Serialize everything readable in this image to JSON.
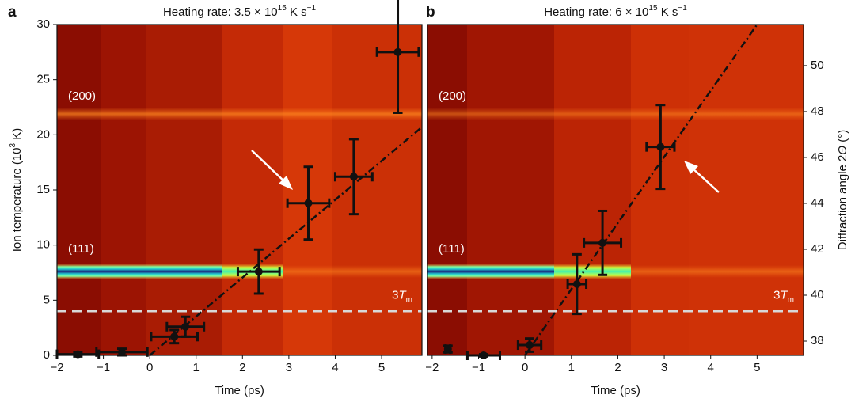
{
  "chart_data": [
    {
      "type": "scatter",
      "panel": "a",
      "title": "Heating rate: 3.5 × 10",
      "title_sup": "15",
      "title_tail": " K s",
      "title_tail_sup": "−1",
      "x_label": "Time (ps)",
      "y_label": "Ion temperature (10",
      "y_label_sup": "3",
      "y_label_tail": " K)",
      "xlim": [
        -2,
        5.87
      ],
      "ylim": [
        0,
        30
      ],
      "xticks": [
        {
          "value": -2,
          "label": "−2"
        },
        {
          "value": -1,
          "label": "−1"
        },
        0,
        1,
        2,
        3,
        4,
        5
      ],
      "yticks": [
        0,
        5,
        10,
        15,
        20,
        25,
        30
      ],
      "peak_labels": [
        "(200)",
        "(111)"
      ],
      "color": "#111111",
      "fit_color": "#111111",
      "points": {
        "x": [
          -1.55,
          -0.6,
          0.53,
          0.77,
          2.35,
          3.42,
          4.4,
          5.35
        ],
        "y": [
          0.1,
          0.3,
          1.7,
          2.6,
          7.6,
          13.8,
          16.2,
          27.5
        ],
        "xerr": [
          0.45,
          0.55,
          0.5,
          0.4,
          0.45,
          0.45,
          0.4,
          0.45
        ],
        "yerr": [
          0.2,
          0.3,
          0.6,
          0.9,
          2.0,
          3.3,
          3.4,
          5.5
        ]
      },
      "fit": {
        "x": [
          0,
          5.87
        ],
        "y": [
          0,
          20.7
        ]
      },
      "threshold": {
        "value": 4,
        "label": "3",
        "label_italic": "T",
        "label_sub": "m",
        "color": "#d8d8d8"
      }
    },
    {
      "type": "scatter",
      "panel": "b",
      "title": "Heating rate: 6 × 10",
      "title_sup": "15",
      "title_tail": " K s",
      "title_tail_sup": "−1",
      "x_label": "Time (ps)",
      "y2_label": "Diffraction angle 2",
      "y2_label_italic": "Θ",
      "y2_label_tail": " (°)",
      "xlim": [
        -2.1,
        6.0
      ],
      "ylim": [
        0,
        30
      ],
      "y2lim": [
        37.38,
        51.79
      ],
      "xticks": [
        {
          "value": -2,
          "label": "−2"
        },
        {
          "value": -1,
          "label": "−1"
        },
        0,
        1,
        2,
        3,
        4,
        5
      ],
      "y2ticks": [
        38,
        40,
        42,
        44,
        46,
        48,
        50
      ],
      "peak_labels": [
        "(200)",
        "(111)"
      ],
      "color": "#111111",
      "fit_color": "#111111",
      "points": {
        "x": [
          -1.66,
          -0.89,
          0.1,
          1.12,
          1.67,
          2.92
        ],
        "y": [
          0.57,
          0.0,
          0.93,
          6.46,
          10.2,
          18.9
        ],
        "xerr": [
          0.05,
          0.35,
          0.25,
          0.2,
          0.4,
          0.3
        ],
        "yerr": [
          0.3,
          0.1,
          0.6,
          2.7,
          2.9,
          3.8
        ]
      },
      "fit": {
        "x": [
          0,
          5
        ],
        "y": [
          0,
          30
        ]
      },
      "threshold": {
        "value": 4,
        "label": "3",
        "label_italic": "T",
        "label_sub": "m",
        "color": "#d8d8d8"
      }
    }
  ]
}
